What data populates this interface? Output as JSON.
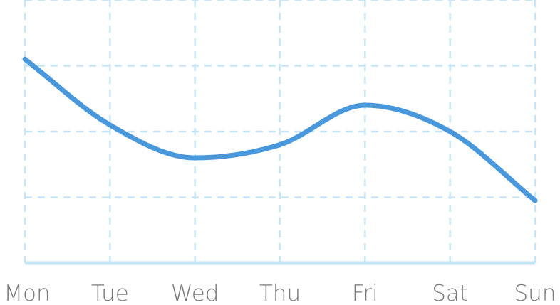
{
  "chart_data": {
    "type": "line",
    "categories": [
      "Mon",
      "Tue",
      "Wed",
      "Thu",
      "Fri",
      "Sat",
      "Sun"
    ],
    "series": [
      {
        "values": [
          3.1,
          2.1,
          1.6,
          1.8,
          2.4,
          2.0,
          0.95
        ]
      }
    ],
    "ylim": [
      0,
      4.0
    ],
    "grid": true,
    "colors": {
      "line": "#4a98dc",
      "grid": "#c6e6f7",
      "baseline": "#c6e6f7",
      "tick_label": "#7a7a7a"
    }
  }
}
